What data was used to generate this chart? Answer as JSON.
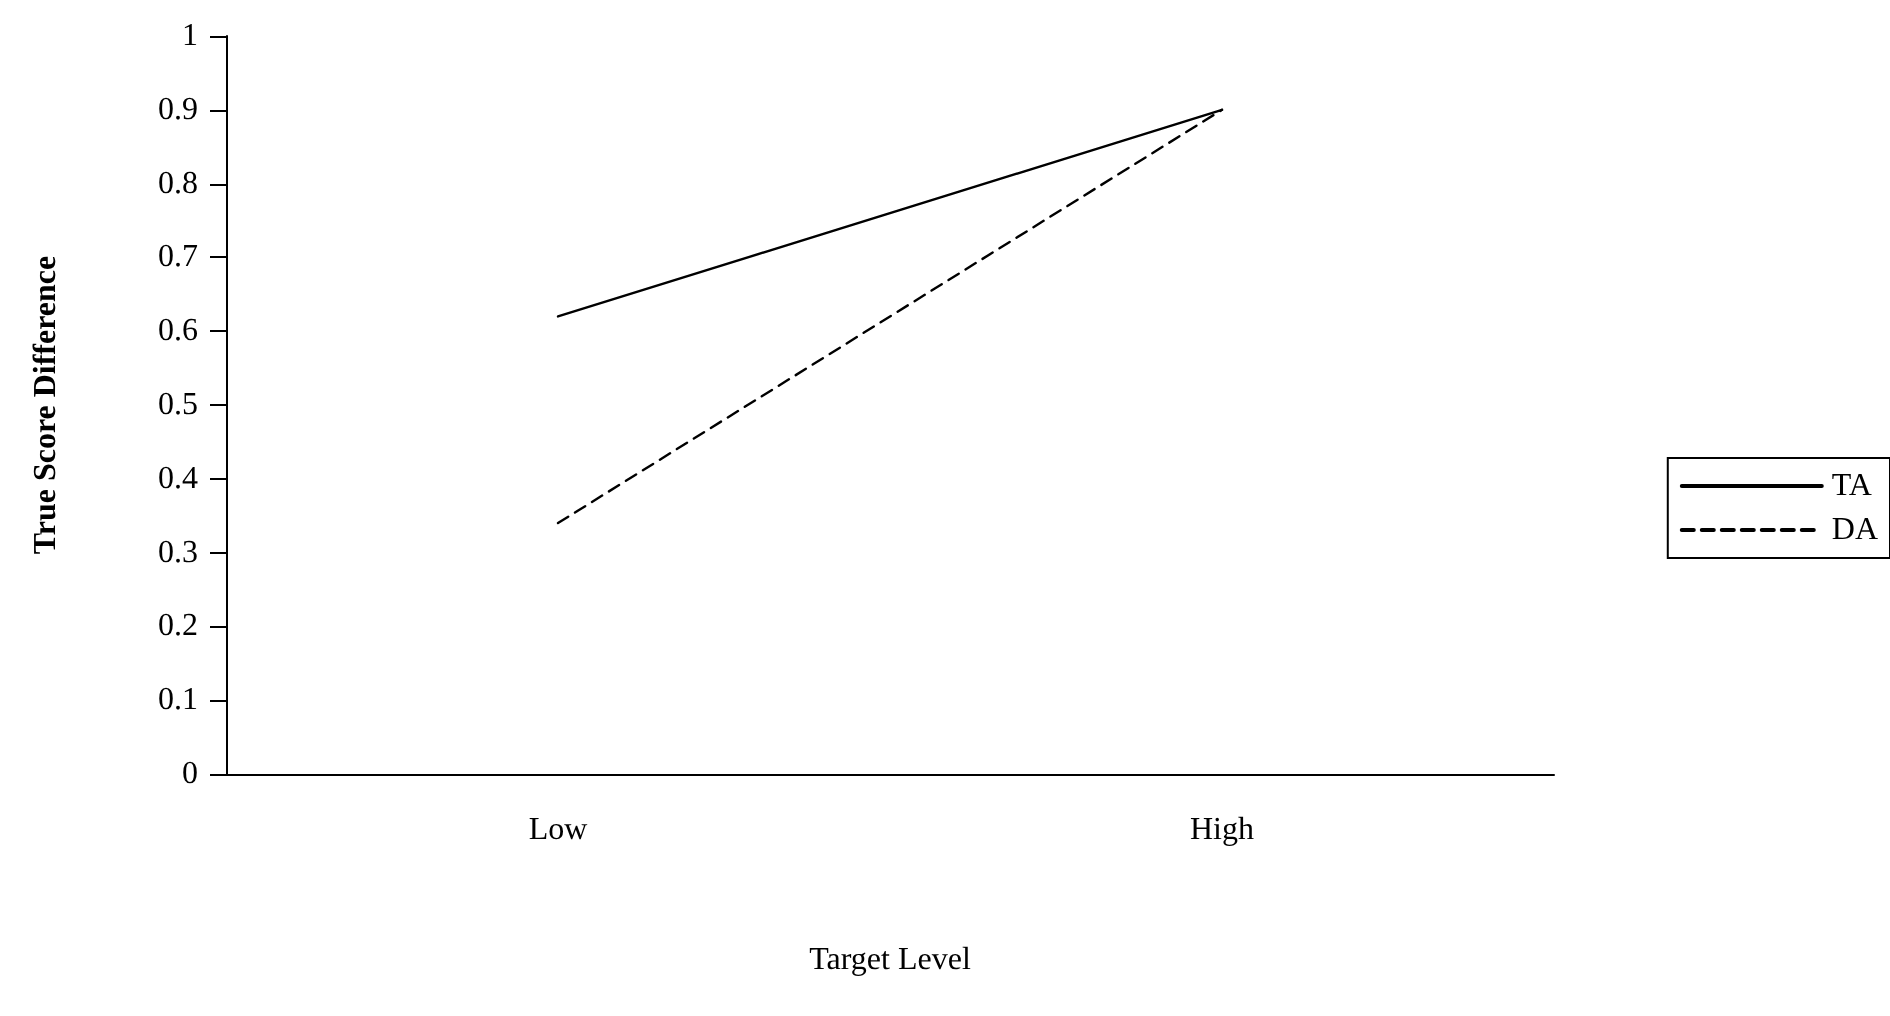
{
  "chart_data": {
    "type": "line",
    "xlabel": "Target Level",
    "ylabel": "True Score Difference",
    "categories": [
      "Low",
      "High"
    ],
    "series": [
      {
        "name": "TA",
        "color": "#000000",
        "line_style": "solid",
        "values": [
          0.62,
          0.9
        ]
      },
      {
        "name": "DA",
        "color": "#000000",
        "line_style": "dashed",
        "values": [
          0.34,
          0.9
        ]
      }
    ],
    "ylim": [
      0,
      1
    ],
    "yticks": [
      0,
      0.1,
      0.2,
      0.3,
      0.4,
      0.5,
      0.6,
      0.7,
      0.8,
      0.9,
      1
    ],
    "grid": false,
    "legend": "right",
    "marker": "none"
  }
}
